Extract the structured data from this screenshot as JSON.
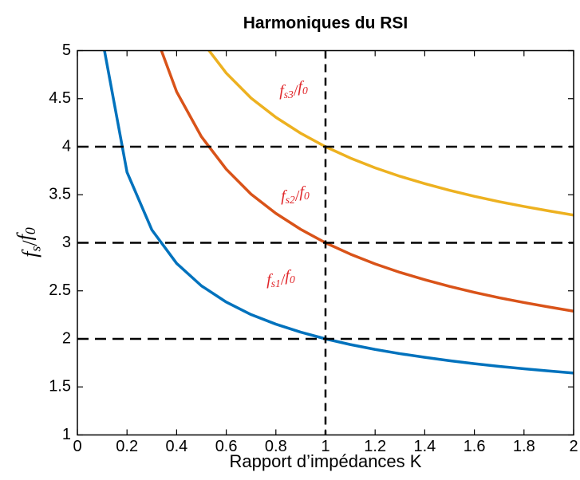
{
  "chart_data": {
    "type": "line",
    "title": "Harmoniques du RSI",
    "x_label": "Rapport d’impédances K",
    "y_label": {
      "num": "f",
      "num_sub": "s",
      "sep": "/",
      "den": "f",
      "den_sub": "0"
    },
    "x": [
      0.1,
      0.2,
      0.3,
      0.4,
      0.5,
      0.6,
      0.7,
      0.8,
      0.9,
      1.0,
      1.1,
      1.2,
      1.3,
      1.4,
      1.5,
      1.6,
      1.7,
      1.8,
      1.9,
      2.0
    ],
    "series": [
      {
        "color": "#0072bd",
        "values": [
          5.128,
          3.735,
          3.135,
          2.786,
          2.552,
          2.383,
          2.253,
          2.153,
          2.07,
          2.0,
          1.941,
          1.89,
          1.846,
          1.808,
          1.773,
          1.742,
          1.714,
          1.689,
          1.666,
          1.644
        ]
      },
      {
        "color": "#d95319",
        "values": [
          null,
          null,
          5.27,
          4.572,
          4.104,
          3.766,
          3.506,
          3.306,
          3.14,
          3.0,
          2.882,
          2.78,
          2.692,
          2.616,
          2.546,
          2.484,
          2.428,
          2.378,
          2.332,
          2.288
        ]
      },
      {
        "color": "#edb120",
        "values": [
          null,
          null,
          null,
          5.572,
          5.104,
          4.766,
          4.506,
          4.306,
          4.14,
          4.0,
          3.882,
          3.78,
          3.692,
          3.616,
          3.546,
          3.484,
          3.428,
          3.378,
          3.332,
          3.288
        ]
      }
    ],
    "annotations": [
      {
        "num": "f",
        "num_sub": "s1",
        "sep": "/",
        "den": "f",
        "den_sub": "0",
        "color": "#e0262a"
      },
      {
        "num": "f",
        "num_sub": "s2",
        "sep": "/",
        "den": "f",
        "den_sub": "0",
        "color": "#e0262a"
      },
      {
        "num": "f",
        "num_sub": "s3",
        "sep": "/",
        "den": "f",
        "den_sub": "0",
        "color": "#e0262a"
      }
    ],
    "reference_lines": {
      "x": [
        1
      ],
      "y": [
        2,
        3,
        4
      ]
    },
    "xlim": [
      0,
      2
    ],
    "ylim": [
      1,
      5
    ],
    "xticks": [
      0,
      0.2,
      0.4,
      0.6,
      0.8,
      1,
      1.2,
      1.4,
      1.6,
      1.8,
      2
    ],
    "yticks": [
      1,
      1.5,
      2,
      2.5,
      3,
      3.5,
      4,
      4.5,
      5
    ]
  }
}
